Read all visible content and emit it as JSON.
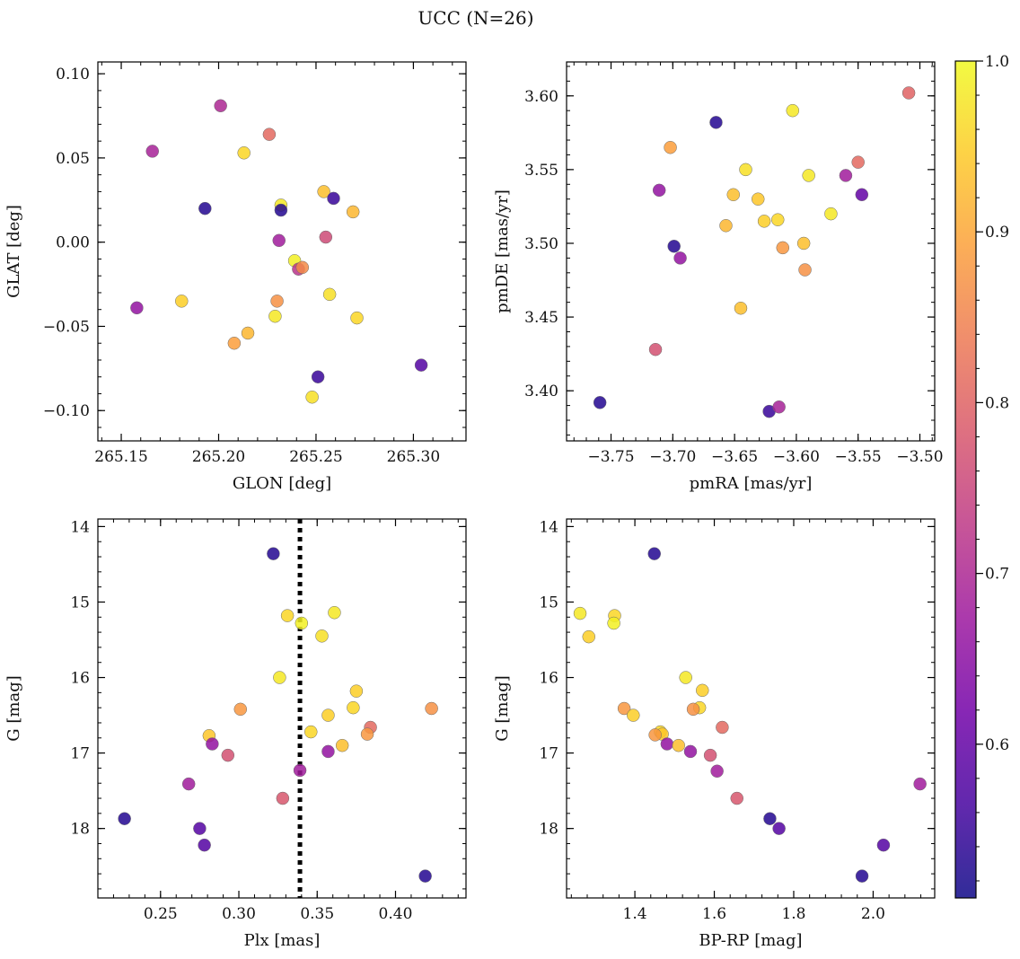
{
  "figure": {
    "title": "UCC (N=26)"
  },
  "colorbar": {
    "range": [
      0.51,
      1.0
    ],
    "ticks": [
      0.6,
      0.7,
      0.8,
      0.9,
      1.0
    ],
    "tick_labels": [
      "0.6",
      "0.7",
      "0.8",
      "0.9",
      "1.0"
    ],
    "colormap": "plasma",
    "stops": [
      "#0d0887",
      "#46039f",
      "#7201a8",
      "#9c179e",
      "#bd3786",
      "#d8576b",
      "#ed7953",
      "#fb9f3a",
      "#fdca26",
      "#f0f921"
    ]
  },
  "chart_data": [
    {
      "type": "scatter",
      "title": "",
      "xlabel": "GLON [deg]",
      "ylabel": "GLAT [deg]",
      "xlim": [
        265.138,
        265.327
      ],
      "ylim": [
        -0.118,
        0.107
      ],
      "xticks": [
        265.15,
        265.2,
        265.25,
        265.3
      ],
      "xtick_labels": [
        "265.15",
        "265.20",
        "265.25",
        "265.30"
      ],
      "yticks": [
        -0.1,
        -0.05,
        0.0,
        0.05,
        0.1
      ],
      "ytick_labels": [
        "−0.10",
        "−0.05",
        "0.00",
        "0.05",
        "0.10"
      ],
      "inverted_y": false,
      "grid": false,
      "points": [
        {
          "x": 265.201,
          "y": 0.081,
          "c": 0.7
        },
        {
          "x": 265.166,
          "y": 0.054,
          "c": 0.69
        },
        {
          "x": 265.226,
          "y": 0.064,
          "c": 0.81
        },
        {
          "x": 265.213,
          "y": 0.053,
          "c": 0.96
        },
        {
          "x": 265.193,
          "y": 0.02,
          "c": 0.53
        },
        {
          "x": 265.232,
          "y": 0.022,
          "c": 0.98
        },
        {
          "x": 265.232,
          "y": 0.019,
          "c": 0.53
        },
        {
          "x": 265.254,
          "y": 0.03,
          "c": 0.93
        },
        {
          "x": 265.259,
          "y": 0.026,
          "c": 0.55
        },
        {
          "x": 265.269,
          "y": 0.018,
          "c": 0.92
        },
        {
          "x": 265.231,
          "y": 0.001,
          "c": 0.68
        },
        {
          "x": 265.255,
          "y": 0.003,
          "c": 0.76
        },
        {
          "x": 265.239,
          "y": -0.011,
          "c": 0.99
        },
        {
          "x": 265.241,
          "y": -0.016,
          "c": 0.72
        },
        {
          "x": 265.243,
          "y": -0.015,
          "c": 0.86
        },
        {
          "x": 265.181,
          "y": -0.035,
          "c": 0.95
        },
        {
          "x": 265.158,
          "y": -0.039,
          "c": 0.66
        },
        {
          "x": 265.23,
          "y": -0.035,
          "c": 0.87
        },
        {
          "x": 265.257,
          "y": -0.031,
          "c": 0.97
        },
        {
          "x": 265.229,
          "y": -0.044,
          "c": 0.98
        },
        {
          "x": 265.271,
          "y": -0.045,
          "c": 0.96
        },
        {
          "x": 265.215,
          "y": -0.054,
          "c": 0.92
        },
        {
          "x": 265.208,
          "y": -0.06,
          "c": 0.89
        },
        {
          "x": 265.251,
          "y": -0.08,
          "c": 0.55
        },
        {
          "x": 265.304,
          "y": -0.073,
          "c": 0.58
        },
        {
          "x": 265.248,
          "y": -0.092,
          "c": 0.97
        }
      ]
    },
    {
      "type": "scatter",
      "title": "",
      "xlabel": "pmRA [mas/yr]",
      "ylabel": "pmDE [mas/yr]",
      "xlim": [
        -3.786,
        -3.488
      ],
      "ylim": [
        3.366,
        3.623
      ],
      "xticks": [
        -3.75,
        -3.7,
        -3.65,
        -3.6,
        -3.55,
        -3.5
      ],
      "xtick_labels": [
        "−3.75",
        "−3.70",
        "−3.65",
        "−3.60",
        "−3.55",
        "−3.50"
      ],
      "yticks": [
        3.4,
        3.45,
        3.5,
        3.55,
        3.6
      ],
      "ytick_labels": [
        "3.40",
        "3.45",
        "3.50",
        "3.55",
        "3.60"
      ],
      "inverted_y": false,
      "grid": false,
      "points": [
        {
          "x": -3.509,
          "y": 3.602,
          "c": 0.8
        },
        {
          "x": -3.603,
          "y": 3.59,
          "c": 0.98
        },
        {
          "x": -3.665,
          "y": 3.582,
          "c": 0.53
        },
        {
          "x": -3.702,
          "y": 3.565,
          "c": 0.89
        },
        {
          "x": -3.55,
          "y": 3.555,
          "c": 0.81
        },
        {
          "x": -3.641,
          "y": 3.55,
          "c": 0.97
        },
        {
          "x": -3.59,
          "y": 3.546,
          "c": 0.98
        },
        {
          "x": -3.56,
          "y": 3.546,
          "c": 0.68
        },
        {
          "x": -3.711,
          "y": 3.536,
          "c": 0.66
        },
        {
          "x": -3.651,
          "y": 3.533,
          "c": 0.93
        },
        {
          "x": -3.547,
          "y": 3.533,
          "c": 0.6
        },
        {
          "x": -3.631,
          "y": 3.53,
          "c": 0.94
        },
        {
          "x": -3.572,
          "y": 3.52,
          "c": 0.98
        },
        {
          "x": -3.626,
          "y": 3.515,
          "c": 0.95
        },
        {
          "x": -3.615,
          "y": 3.516,
          "c": 0.96
        },
        {
          "x": -3.657,
          "y": 3.512,
          "c": 0.92
        },
        {
          "x": -3.699,
          "y": 3.498,
          "c": 0.53
        },
        {
          "x": -3.611,
          "y": 3.497,
          "c": 0.88
        },
        {
          "x": -3.594,
          "y": 3.5,
          "c": 0.93
        },
        {
          "x": -3.694,
          "y": 3.49,
          "c": 0.66
        },
        {
          "x": -3.593,
          "y": 3.482,
          "c": 0.87
        },
        {
          "x": -3.645,
          "y": 3.456,
          "c": 0.93
        },
        {
          "x": -3.714,
          "y": 3.428,
          "c": 0.77
        },
        {
          "x": -3.759,
          "y": 3.392,
          "c": 0.53
        },
        {
          "x": -3.622,
          "y": 3.386,
          "c": 0.55
        },
        {
          "x": -3.614,
          "y": 3.389,
          "c": 0.69
        }
      ]
    },
    {
      "type": "scatter",
      "title": "",
      "xlabel": "Plx [mas]",
      "ylabel": "G [mag]",
      "xlim": [
        0.21,
        0.445
      ],
      "ylim": [
        18.92,
        13.9
      ],
      "xticks": [
        0.25,
        0.3,
        0.35,
        0.4
      ],
      "xtick_labels": [
        "0.25",
        "0.30",
        "0.35",
        "0.40"
      ],
      "yticks": [
        14,
        15,
        16,
        17,
        18
      ],
      "ytick_labels": [
        "14",
        "15",
        "16",
        "17",
        "18"
      ],
      "inverted_y": true,
      "grid": false,
      "vline": {
        "x": 0.339,
        "style": "dotted"
      },
      "points": [
        {
          "x": 0.322,
          "y": 14.36,
          "c": 0.53
        },
        {
          "x": 0.331,
          "y": 15.18,
          "c": 0.96
        },
        {
          "x": 0.361,
          "y": 15.14,
          "c": 0.98
        },
        {
          "x": 0.34,
          "y": 15.28,
          "c": 0.99
        },
        {
          "x": 0.353,
          "y": 15.45,
          "c": 0.97
        },
        {
          "x": 0.326,
          "y": 16.0,
          "c": 0.98
        },
        {
          "x": 0.375,
          "y": 16.18,
          "c": 0.95
        },
        {
          "x": 0.301,
          "y": 16.42,
          "c": 0.88
        },
        {
          "x": 0.373,
          "y": 16.4,
          "c": 0.96
        },
        {
          "x": 0.423,
          "y": 16.41,
          "c": 0.87
        },
        {
          "x": 0.357,
          "y": 16.5,
          "c": 0.95
        },
        {
          "x": 0.384,
          "y": 16.66,
          "c": 0.81
        },
        {
          "x": 0.346,
          "y": 16.72,
          "c": 0.96
        },
        {
          "x": 0.281,
          "y": 16.77,
          "c": 0.94
        },
        {
          "x": 0.382,
          "y": 16.75,
          "c": 0.88
        },
        {
          "x": 0.283,
          "y": 16.88,
          "c": 0.66
        },
        {
          "x": 0.366,
          "y": 16.9,
          "c": 0.93
        },
        {
          "x": 0.357,
          "y": 16.98,
          "c": 0.66
        },
        {
          "x": 0.293,
          "y": 17.03,
          "c": 0.77
        },
        {
          "x": 0.339,
          "y": 17.23,
          "c": 0.68
        },
        {
          "x": 0.268,
          "y": 17.41,
          "c": 0.68
        },
        {
          "x": 0.328,
          "y": 17.6,
          "c": 0.78
        },
        {
          "x": 0.227,
          "y": 17.87,
          "c": 0.53
        },
        {
          "x": 0.275,
          "y": 18.0,
          "c": 0.58
        },
        {
          "x": 0.278,
          "y": 18.22,
          "c": 0.58
        },
        {
          "x": 0.419,
          "y": 18.63,
          "c": 0.53
        }
      ]
    },
    {
      "type": "scatter",
      "title": "",
      "xlabel": "BP-RP [mag]",
      "ylabel": "G [mag]",
      "xlim": [
        1.228,
        2.155
      ],
      "ylim": [
        18.92,
        13.9
      ],
      "xticks": [
        1.4,
        1.6,
        1.8,
        2.0
      ],
      "xtick_labels": [
        "1.4",
        "1.6",
        "1.8",
        "2.0"
      ],
      "yticks": [
        14,
        15,
        16,
        17,
        18
      ],
      "ytick_labels": [
        "14",
        "15",
        "16",
        "17",
        "18"
      ],
      "inverted_y": true,
      "grid": false,
      "points": [
        {
          "x": 1.449,
          "y": 14.36,
          "c": 0.53
        },
        {
          "x": 1.262,
          "y": 15.15,
          "c": 0.98
        },
        {
          "x": 1.349,
          "y": 15.18,
          "c": 0.96
        },
        {
          "x": 1.347,
          "y": 15.28,
          "c": 0.99
        },
        {
          "x": 1.284,
          "y": 15.46,
          "c": 0.95
        },
        {
          "x": 1.528,
          "y": 16.0,
          "c": 0.98
        },
        {
          "x": 1.57,
          "y": 16.17,
          "c": 0.95
        },
        {
          "x": 1.373,
          "y": 16.41,
          "c": 0.88
        },
        {
          "x": 1.563,
          "y": 16.4,
          "c": 0.96
        },
        {
          "x": 1.547,
          "y": 16.42,
          "c": 0.87
        },
        {
          "x": 1.396,
          "y": 16.5,
          "c": 0.95
        },
        {
          "x": 1.62,
          "y": 16.66,
          "c": 0.81
        },
        {
          "x": 1.464,
          "y": 16.72,
          "c": 0.96
        },
        {
          "x": 1.469,
          "y": 16.75,
          "c": 0.94
        },
        {
          "x": 1.451,
          "y": 16.76,
          "c": 0.88
        },
        {
          "x": 1.481,
          "y": 16.88,
          "c": 0.66
        },
        {
          "x": 1.51,
          "y": 16.9,
          "c": 0.93
        },
        {
          "x": 1.54,
          "y": 16.98,
          "c": 0.66
        },
        {
          "x": 1.59,
          "y": 17.03,
          "c": 0.77
        },
        {
          "x": 1.607,
          "y": 17.24,
          "c": 0.68
        },
        {
          "x": 2.118,
          "y": 17.41,
          "c": 0.68
        },
        {
          "x": 1.657,
          "y": 17.6,
          "c": 0.78
        },
        {
          "x": 1.74,
          "y": 17.87,
          "c": 0.53
        },
        {
          "x": 1.763,
          "y": 18.0,
          "c": 0.58
        },
        {
          "x": 2.026,
          "y": 18.22,
          "c": 0.58
        },
        {
          "x": 1.972,
          "y": 18.63,
          "c": 0.53
        }
      ]
    }
  ]
}
